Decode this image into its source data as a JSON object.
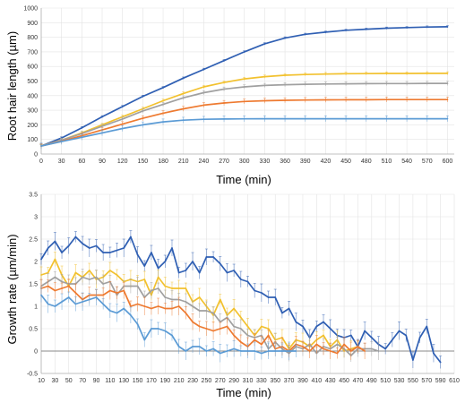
{
  "chart_data": [
    {
      "type": "line",
      "xlabel": "Time (min)",
      "ylabel": "Root hair length (µm)",
      "xlim": [
        0,
        610
      ],
      "ylim": [
        0,
        1000
      ],
      "xticks": [
        0,
        30,
        60,
        90,
        120,
        150,
        180,
        210,
        240,
        270,
        300,
        330,
        360,
        390,
        420,
        450,
        480,
        510,
        540,
        570,
        600
      ],
      "yticks": [
        0,
        100,
        200,
        300,
        400,
        500,
        600,
        700,
        800,
        900,
        1000
      ],
      "grid": true,
      "series": [
        {
          "color": "#2f5fb3",
          "x": [
            0,
            30,
            60,
            90,
            120,
            150,
            180,
            210,
            240,
            270,
            300,
            330,
            360,
            390,
            420,
            450,
            480,
            510,
            540,
            570,
            600
          ],
          "y": [
            55,
            110,
            180,
            255,
            325,
            395,
            455,
            520,
            580,
            640,
            700,
            755,
            795,
            820,
            835,
            848,
            855,
            862,
            866,
            870,
            872
          ]
        },
        {
          "color": "#f2c12e",
          "x": [
            0,
            30,
            60,
            90,
            120,
            150,
            180,
            210,
            240,
            270,
            300,
            330,
            360,
            390,
            420,
            450,
            480,
            510,
            540,
            570,
            600
          ],
          "y": [
            55,
            95,
            145,
            200,
            255,
            310,
            365,
            415,
            460,
            490,
            515,
            530,
            540,
            545,
            548,
            550,
            551,
            552,
            552,
            553,
            553
          ]
        },
        {
          "color": "#a0a0a0",
          "x": [
            0,
            30,
            60,
            90,
            120,
            150,
            180,
            210,
            240,
            270,
            300,
            330,
            360,
            390,
            420,
            450,
            480,
            510,
            540,
            570,
            600
          ],
          "y": [
            55,
            95,
            140,
            190,
            240,
            295,
            340,
            385,
            420,
            445,
            460,
            470,
            475,
            478,
            480,
            481,
            482,
            483,
            483,
            484,
            484
          ]
        },
        {
          "color": "#ee7a30",
          "x": [
            0,
            30,
            60,
            90,
            120,
            150,
            180,
            210,
            240,
            270,
            300,
            330,
            360,
            390,
            420,
            450,
            480,
            510,
            540,
            570,
            600
          ],
          "y": [
            55,
            88,
            125,
            165,
            205,
            245,
            280,
            310,
            335,
            350,
            360,
            365,
            368,
            370,
            371,
            372,
            372,
            373,
            373,
            373,
            373
          ]
        },
        {
          "color": "#5b9bd5",
          "x": [
            0,
            30,
            60,
            90,
            120,
            150,
            180,
            210,
            240,
            270,
            300,
            330,
            360,
            390,
            420,
            450,
            480,
            510,
            540,
            570,
            600
          ],
          "y": [
            55,
            85,
            115,
            145,
            175,
            200,
            220,
            232,
            238,
            240,
            241,
            242,
            242,
            242,
            242,
            242,
            242,
            242,
            242,
            242,
            242
          ]
        }
      ]
    },
    {
      "type": "line",
      "xlabel": "Time (min)",
      "ylabel": "Growth rate (µm/min)",
      "xlim": [
        10,
        610
      ],
      "ylim": [
        -0.5,
        3.5
      ],
      "xticks": [
        10,
        30,
        50,
        70,
        90,
        110,
        130,
        150,
        170,
        190,
        210,
        230,
        250,
        270,
        290,
        310,
        330,
        350,
        370,
        390,
        410,
        430,
        450,
        470,
        490,
        510,
        530,
        550,
        570,
        590,
        610
      ],
      "yticks": [
        -0.5,
        0,
        0.5,
        1,
        1.5,
        2,
        2.5,
        3,
        3.5
      ],
      "grid": true,
      "series": [
        {
          "color": "#2f5fb3",
          "x": [
            10,
            20,
            30,
            40,
            50,
            60,
            70,
            80,
            90,
            100,
            110,
            120,
            130,
            140,
            150,
            160,
            170,
            180,
            190,
            200,
            210,
            220,
            230,
            240,
            250,
            260,
            270,
            280,
            290,
            300,
            310,
            320,
            330,
            340,
            350,
            360,
            370,
            380,
            390,
            400,
            410,
            420,
            430,
            440,
            450,
            460,
            470,
            480,
            490,
            500,
            510,
            520,
            530,
            540,
            550,
            560,
            570,
            580,
            590
          ],
          "y": [
            2.05,
            2.3,
            2.45,
            2.2,
            2.35,
            2.55,
            2.4,
            2.3,
            2.35,
            2.2,
            2.2,
            2.25,
            2.3,
            2.55,
            2.15,
            1.9,
            2.2,
            1.85,
            2.0,
            2.3,
            1.75,
            1.8,
            2.0,
            1.75,
            2.1,
            2.1,
            1.95,
            1.75,
            1.8,
            1.6,
            1.55,
            1.35,
            1.3,
            1.2,
            1.2,
            0.85,
            0.95,
            0.65,
            0.55,
            0.3,
            0.55,
            0.65,
            0.5,
            0.35,
            0.3,
            0.35,
            0.1,
            0.45,
            0.3,
            0.15,
            0.05,
            0.25,
            0.45,
            0.35,
            -0.2,
            0.3,
            0.55,
            -0.05,
            -0.25
          ]
        },
        {
          "color": "#f2c12e",
          "x": [
            10,
            20,
            30,
            40,
            50,
            60,
            70,
            80,
            90,
            100,
            110,
            120,
            130,
            140,
            150,
            160,
            170,
            180,
            190,
            200,
            210,
            220,
            230,
            240,
            250,
            260,
            270,
            280,
            290,
            300,
            310,
            320,
            330,
            340,
            350,
            360,
            370,
            380,
            390,
            400,
            410,
            420,
            430,
            440,
            450,
            460,
            470
          ],
          "y": [
            1.7,
            1.75,
            2.05,
            1.7,
            1.45,
            1.75,
            1.65,
            1.8,
            1.6,
            1.65,
            1.8,
            1.7,
            1.55,
            1.6,
            1.55,
            1.6,
            1.25,
            1.65,
            1.45,
            1.4,
            1.4,
            1.4,
            1.1,
            1.2,
            1.0,
            0.8,
            1.15,
            0.8,
            0.95,
            0.75,
            0.55,
            0.35,
            0.55,
            0.5,
            0.25,
            0.3,
            0.05,
            0.25,
            0.2,
            0.1,
            0.25,
            0.35,
            0.1,
            0.25,
            0.0,
            0.05,
            0.1
          ]
        },
        {
          "color": "#a0a0a0",
          "x": [
            10,
            20,
            30,
            40,
            50,
            60,
            70,
            80,
            90,
            100,
            110,
            120,
            130,
            140,
            150,
            160,
            170,
            180,
            190,
            200,
            210,
            220,
            230,
            240,
            250,
            260,
            270,
            280,
            290,
            300,
            310,
            320,
            330,
            340,
            350,
            360,
            370,
            380,
            390,
            400,
            410,
            420,
            430,
            440,
            450,
            460,
            470,
            480,
            490,
            500
          ],
          "y": [
            1.45,
            1.55,
            1.65,
            1.55,
            1.5,
            1.5,
            1.65,
            1.6,
            1.65,
            1.5,
            1.55,
            1.25,
            1.45,
            1.45,
            1.45,
            1.2,
            1.35,
            1.4,
            1.2,
            1.15,
            1.15,
            1.1,
            1.0,
            0.9,
            0.9,
            0.85,
            0.65,
            0.75,
            0.55,
            0.5,
            0.35,
            0.3,
            0.35,
            0.05,
            0.2,
            0.05,
            -0.05,
            0.1,
            0.05,
            0.15,
            -0.05,
            0.1,
            0.05,
            0.15,
            0.05,
            -0.1,
            0.05,
            0.05,
            0.05,
            0.0
          ]
        },
        {
          "color": "#ee7a30",
          "x": [
            10,
            20,
            30,
            40,
            50,
            60,
            70,
            80,
            90,
            100,
            110,
            120,
            130,
            140,
            150,
            160,
            170,
            180,
            190,
            200,
            210,
            220,
            230,
            240,
            250,
            260,
            270,
            280,
            290,
            300,
            310,
            320,
            330,
            340,
            350,
            360,
            370,
            380,
            390,
            400,
            410,
            420,
            430,
            440,
            450,
            460,
            470,
            480
          ],
          "y": [
            1.4,
            1.45,
            1.35,
            1.4,
            1.45,
            1.3,
            1.15,
            1.25,
            1.25,
            1.25,
            1.35,
            1.3,
            1.35,
            1.0,
            1.05,
            1.0,
            0.95,
            1.0,
            0.95,
            0.95,
            1.0,
            0.85,
            0.65,
            0.55,
            0.5,
            0.45,
            0.5,
            0.55,
            0.35,
            0.2,
            0.1,
            0.25,
            0.15,
            0.35,
            0.05,
            0.1,
            0.0,
            0.15,
            0.1,
            0.0,
            0.15,
            0.05,
            0.0,
            -0.05,
            0.15,
            0.0,
            0.1,
            0.0
          ]
        },
        {
          "color": "#5b9bd5",
          "x": [
            10,
            20,
            30,
            40,
            50,
            60,
            70,
            80,
            90,
            100,
            110,
            120,
            130,
            140,
            150,
            160,
            170,
            180,
            190,
            200,
            210,
            220,
            230,
            240,
            250,
            260,
            270,
            280,
            290,
            300,
            310,
            320,
            330,
            340,
            350,
            360,
            370,
            380
          ],
          "y": [
            1.25,
            1.05,
            1.0,
            1.1,
            1.2,
            1.05,
            1.1,
            1.15,
            1.2,
            1.05,
            0.9,
            0.85,
            0.95,
            0.8,
            0.6,
            0.25,
            0.5,
            0.5,
            0.45,
            0.35,
            0.1,
            0.0,
            0.1,
            0.1,
            0.0,
            0.05,
            -0.05,
            0.0,
            0.05,
            0.0,
            0.0,
            0.0,
            -0.05,
            0.0,
            0.0,
            0.0,
            0.0,
            0.0
          ]
        }
      ]
    }
  ]
}
